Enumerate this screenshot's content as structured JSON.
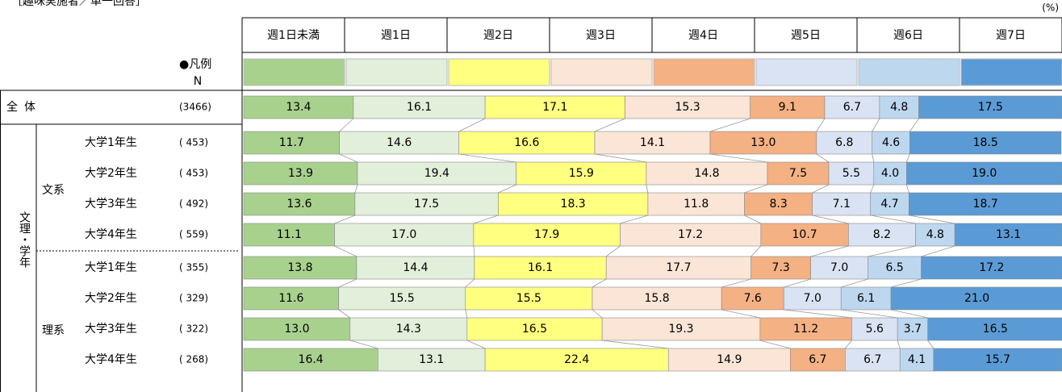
{
  "chart_data": {
    "type": "stacked_bar_h",
    "title": "［趣味実施者／単一回答］",
    "unit_label": "(%)",
    "legend_label": "●凡例",
    "n_header": "N",
    "total_label": "全体",
    "outer_group": "文理・学年",
    "groups": [
      "文系",
      "理系"
    ],
    "categories": [
      "全体",
      "大学1年生",
      "大学2年生",
      "大学3年生",
      "大学4年生",
      "大学1年生",
      "大学2年生",
      "大学3年生",
      "大学4年生"
    ],
    "n_labels": [
      "(3466)",
      "( 453)",
      "( 453)",
      "( 492)",
      "( 559)",
      "( 355)",
      "( 329)",
      "( 322)",
      "( 268)"
    ],
    "xlim": [
      0,
      100
    ],
    "series": [
      {
        "name": "週1日未満",
        "color": "#a9d18e",
        "values": [
          13.4,
          11.7,
          13.9,
          13.6,
          11.1,
          13.8,
          11.6,
          13,
          16.4
        ],
        "value_labels": [
          "13.4",
          "11.7",
          "13.9",
          "13.6",
          "11.1",
          "13.8",
          "11.6",
          "13.0",
          "16.4"
        ]
      },
      {
        "name": "週1日",
        "color": "#e2efda",
        "values": [
          16.1,
          14.6,
          19.4,
          17.5,
          17,
          14.4,
          15.5,
          14.3,
          13.1
        ],
        "value_labels": [
          "16.1",
          "14.6",
          "19.4",
          "17.5",
          "17.0",
          "14.4",
          "15.5",
          "14.3",
          "13.1"
        ]
      },
      {
        "name": "週2日",
        "color": "#ffff80",
        "values": [
          17.1,
          16.6,
          15.9,
          18.3,
          17.9,
          16.1,
          15.5,
          16.5,
          22.4
        ],
        "value_labels": [
          "17.1",
          "16.6",
          "15.9",
          "18.3",
          "17.9",
          "16.1",
          "15.5",
          "16.5",
          "22.4"
        ]
      },
      {
        "name": "週3日",
        "color": "#fbe5d6",
        "values": [
          15.3,
          14.1,
          14.8,
          11.8,
          17.2,
          17.7,
          15.8,
          19.3,
          14.9
        ],
        "value_labels": [
          "15.3",
          "14.1",
          "14.8",
          "11.8",
          "17.2",
          "17.7",
          "15.8",
          "19.3",
          "14.9"
        ]
      },
      {
        "name": "週4日",
        "color": "#f4b183",
        "values": [
          9.1,
          13,
          7.5,
          8.3,
          10.7,
          7.3,
          7.6,
          11.2,
          6.7
        ],
        "value_labels": [
          "9.1",
          "13.0",
          "7.5",
          "8.3",
          "10.7",
          "7.3",
          "7.6",
          "11.2",
          "6.7"
        ]
      },
      {
        "name": "週5日",
        "color": "#dae3f3",
        "values": [
          6.7,
          6.8,
          5.5,
          7.1,
          8.2,
          7,
          7,
          5.6,
          6.7
        ],
        "value_labels": [
          "6.7",
          "6.8",
          "5.5",
          "7.1",
          "8.2",
          "7.0",
          "7.0",
          "5.6",
          "6.7"
        ]
      },
      {
        "name": "週6日",
        "color": "#bdd7ee",
        "values": [
          4.8,
          4.6,
          4,
          4.7,
          4.8,
          6.5,
          6.1,
          3.7,
          4.1
        ],
        "value_labels": [
          "4.8",
          "4.6",
          "4.0",
          "4.7",
          "4.8",
          "6.5",
          "6.1",
          "3.7",
          "4.1"
        ]
      },
      {
        "name": "週7日",
        "color": "#5b9bd5",
        "values": [
          17.5,
          18.5,
          19,
          18.7,
          13.1,
          17.2,
          21,
          16.5,
          15.7
        ],
        "value_labels": [
          "17.5",
          "18.5",
          "19.0",
          "18.7",
          "13.1",
          "17.2",
          "21.0",
          "16.5",
          "15.7"
        ]
      }
    ]
  }
}
